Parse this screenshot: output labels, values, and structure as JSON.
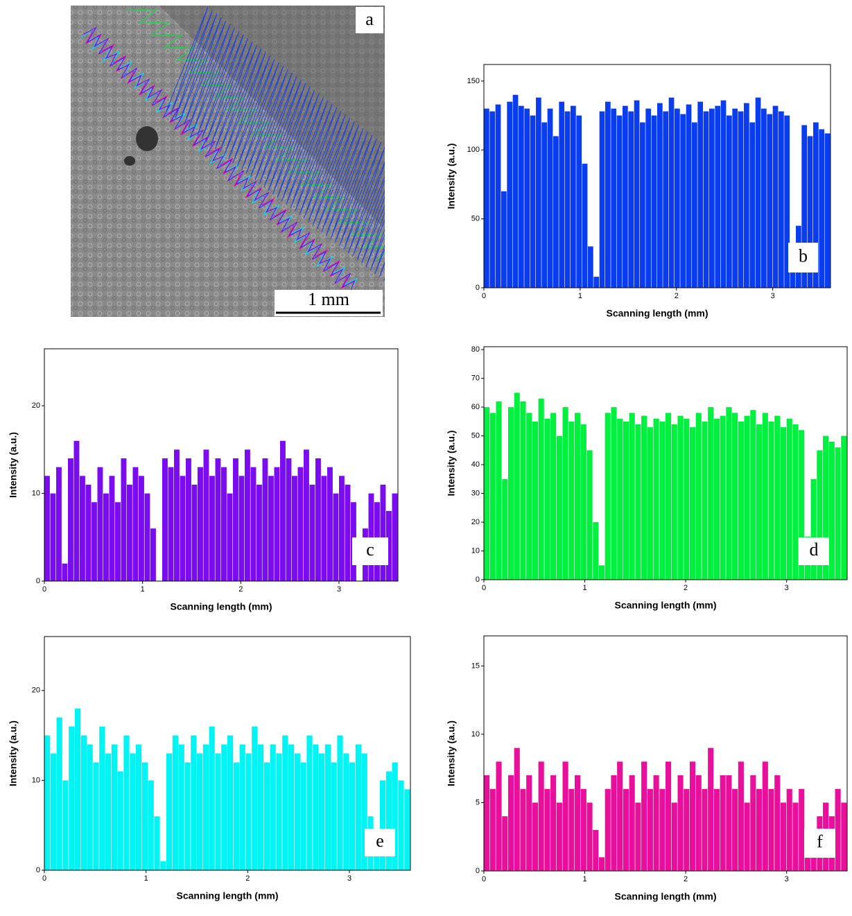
{
  "panel_a": {
    "label": "a",
    "scale_bar": "1 mm"
  },
  "chart_data": [
    {
      "type": "histogram",
      "label": "b",
      "x_label": "Scanning length (mm)",
      "y_label": "Intensity (a.u.)",
      "color": "#0a3cf0",
      "bins": [
        0,
        0.06,
        0.12,
        0.18,
        0.24,
        0.3,
        0.36,
        0.42,
        0.48,
        0.54,
        0.6,
        0.66,
        0.72,
        0.78,
        0.84,
        0.9,
        0.96,
        1.02,
        1.08,
        1.14,
        1.2,
        1.26,
        1.32,
        1.38,
        1.44,
        1.5,
        1.56,
        1.62,
        1.68,
        1.74,
        1.8,
        1.86,
        1.92,
        1.98,
        2.04,
        2.1,
        2.16,
        2.22,
        2.28,
        2.34,
        2.4,
        2.46,
        2.52,
        2.58,
        2.64,
        2.7,
        2.76,
        2.82,
        2.88,
        2.94,
        3,
        3.06,
        3.12,
        3.18,
        3.24,
        3.3,
        3.36,
        3.42,
        3.48,
        3.54,
        3.6
      ],
      "values": [
        130,
        128,
        133,
        70,
        135,
        140,
        132,
        130,
        125,
        138,
        120,
        130,
        110,
        135,
        128,
        132,
        125,
        90,
        30,
        8,
        128,
        135,
        130,
        125,
        132,
        128,
        136,
        120,
        130,
        125,
        134,
        128,
        138,
        130,
        126,
        133,
        120,
        135,
        128,
        130,
        132,
        136,
        125,
        130,
        128,
        134,
        120,
        138,
        130,
        126,
        132,
        128,
        125,
        20,
        45,
        118,
        110,
        120,
        115,
        112
      ],
      "xlim": [
        0,
        3.6
      ],
      "ylim": [
        0,
        162
      ],
      "xticks": [
        0,
        1,
        2,
        3
      ],
      "yticks": [
        0,
        50,
        100,
        150
      ]
    },
    {
      "type": "histogram",
      "label": "c",
      "x_label": "Scanning length (mm)",
      "y_label": "Intensity (a.u.)",
      "color": "#7a0cf0",
      "bins": [
        0,
        0.06,
        0.12,
        0.18,
        0.24,
        0.3,
        0.36,
        0.42,
        0.48,
        0.54,
        0.6,
        0.66,
        0.72,
        0.78,
        0.84,
        0.9,
        0.96,
        1.02,
        1.08,
        1.14,
        1.2,
        1.26,
        1.32,
        1.38,
        1.44,
        1.5,
        1.56,
        1.62,
        1.68,
        1.74,
        1.8,
        1.86,
        1.92,
        1.98,
        2.04,
        2.1,
        2.16,
        2.22,
        2.28,
        2.34,
        2.4,
        2.46,
        2.52,
        2.58,
        2.64,
        2.7,
        2.76,
        2.82,
        2.88,
        2.94,
        3,
        3.06,
        3.12,
        3.18,
        3.24,
        3.3,
        3.36,
        3.42,
        3.48,
        3.54,
        3.6
      ],
      "values": [
        12,
        10,
        13,
        2,
        14,
        16,
        12,
        11,
        9,
        13,
        10,
        12,
        9,
        14,
        11,
        13,
        12,
        10,
        6,
        0,
        14,
        13,
        15,
        12,
        14,
        11,
        13,
        15,
        12,
        14,
        13,
        10,
        14,
        12,
        15,
        13,
        11,
        14,
        12,
        13,
        16,
        14,
        12,
        13,
        15,
        11,
        14,
        12,
        13,
        10,
        12,
        11,
        9,
        0,
        6,
        10,
        9,
        11,
        8,
        10
      ],
      "xlim": [
        0,
        3.6
      ],
      "ylim": [
        0,
        26.5
      ],
      "xticks": [
        0,
        1,
        2,
        3
      ],
      "yticks": [
        0,
        10,
        20
      ]
    },
    {
      "type": "histogram",
      "label": "d",
      "x_label": "Scanning length (mm)",
      "y_label": "Intensity (a.u.)",
      "color": "#00f040",
      "bins": [
        0,
        0.06,
        0.12,
        0.18,
        0.24,
        0.3,
        0.36,
        0.42,
        0.48,
        0.54,
        0.6,
        0.66,
        0.72,
        0.78,
        0.84,
        0.9,
        0.96,
        1.02,
        1.08,
        1.14,
        1.2,
        1.26,
        1.32,
        1.38,
        1.44,
        1.5,
        1.56,
        1.62,
        1.68,
        1.74,
        1.8,
        1.86,
        1.92,
        1.98,
        2.04,
        2.1,
        2.16,
        2.22,
        2.28,
        2.34,
        2.4,
        2.46,
        2.52,
        2.58,
        2.64,
        2.7,
        2.76,
        2.82,
        2.88,
        2.94,
        3,
        3.06,
        3.12,
        3.18,
        3.24,
        3.3,
        3.36,
        3.42,
        3.48,
        3.54,
        3.6
      ],
      "values": [
        60,
        58,
        62,
        35,
        60,
        65,
        62,
        58,
        55,
        63,
        56,
        58,
        50,
        60,
        55,
        58,
        54,
        45,
        20,
        5,
        58,
        60,
        56,
        55,
        58,
        54,
        57,
        53,
        56,
        55,
        58,
        54,
        57,
        56,
        53,
        58,
        55,
        60,
        56,
        57,
        60,
        58,
        55,
        57,
        59,
        54,
        58,
        55,
        57,
        53,
        56,
        54,
        52,
        15,
        35,
        45,
        50,
        48,
        46,
        50
      ],
      "xlim": [
        0,
        3.6
      ],
      "ylim": [
        0,
        81
      ],
      "xticks": [
        0,
        1,
        2,
        3
      ],
      "yticks": [
        0,
        10,
        20,
        30,
        40,
        50,
        60,
        70,
        80
      ]
    },
    {
      "type": "histogram",
      "label": "e",
      "x_label": "Scanning length (mm)",
      "y_label": "Intensity (a.u.)",
      "color": "#00f4f4",
      "bins": [
        0,
        0.06,
        0.12,
        0.18,
        0.24,
        0.3,
        0.36,
        0.42,
        0.48,
        0.54,
        0.6,
        0.66,
        0.72,
        0.78,
        0.84,
        0.9,
        0.96,
        1.02,
        1.08,
        1.14,
        1.2,
        1.26,
        1.32,
        1.38,
        1.44,
        1.5,
        1.56,
        1.62,
        1.68,
        1.74,
        1.8,
        1.86,
        1.92,
        1.98,
        2.04,
        2.1,
        2.16,
        2.22,
        2.28,
        2.34,
        2.4,
        2.46,
        2.52,
        2.58,
        2.64,
        2.7,
        2.76,
        2.82,
        2.88,
        2.94,
        3,
        3.06,
        3.12,
        3.18,
        3.24,
        3.3,
        3.36,
        3.42,
        3.48,
        3.54,
        3.6
      ],
      "values": [
        15,
        13,
        17,
        10,
        16,
        18,
        15,
        14,
        12,
        16,
        13,
        14,
        11,
        15,
        13,
        14,
        12,
        10,
        6,
        1,
        13,
        15,
        14,
        12,
        15,
        13,
        14,
        16,
        13,
        14,
        15,
        12,
        14,
        13,
        16,
        14,
        12,
        14,
        13,
        15,
        14,
        13,
        12,
        15,
        14,
        13,
        14,
        12,
        15,
        13,
        12,
        14,
        13,
        6,
        3,
        10,
        11,
        12,
        10,
        9
      ],
      "xlim": [
        0,
        3.6
      ],
      "ylim": [
        0,
        26
      ],
      "xticks": [
        0,
        1,
        2,
        3
      ],
      "yticks": [
        0,
        10,
        20
      ]
    },
    {
      "type": "histogram",
      "label": "f",
      "x_label": "Scanning length (mm)",
      "y_label": "Intensity (a.u.)",
      "color": "#e8109a",
      "bins": [
        0,
        0.06,
        0.12,
        0.18,
        0.24,
        0.3,
        0.36,
        0.42,
        0.48,
        0.54,
        0.6,
        0.66,
        0.72,
        0.78,
        0.84,
        0.9,
        0.96,
        1.02,
        1.08,
        1.14,
        1.2,
        1.26,
        1.32,
        1.38,
        1.44,
        1.5,
        1.56,
        1.62,
        1.68,
        1.74,
        1.8,
        1.86,
        1.92,
        1.98,
        2.04,
        2.1,
        2.16,
        2.22,
        2.28,
        2.34,
        2.4,
        2.46,
        2.52,
        2.58,
        2.64,
        2.7,
        2.76,
        2.82,
        2.88,
        2.94,
        3,
        3.06,
        3.12,
        3.18,
        3.24,
        3.3,
        3.36,
        3.42,
        3.48,
        3.54,
        3.6
      ],
      "values": [
        7,
        6,
        8,
        4,
        7,
        9,
        6,
        7,
        5,
        8,
        6,
        7,
        5,
        8,
        6,
        7,
        6,
        5,
        3,
        1,
        6,
        7,
        8,
        6,
        7,
        5,
        8,
        6,
        7,
        6,
        8,
        5,
        7,
        6,
        8,
        7,
        6,
        9,
        6,
        7,
        7,
        6,
        8,
        5,
        7,
        6,
        8,
        6,
        7,
        5,
        6,
        5,
        6,
        1,
        2,
        4,
        5,
        4,
        6,
        5
      ],
      "xlim": [
        0,
        3.6
      ],
      "ylim": [
        0,
        17.2
      ],
      "xticks": [
        0,
        1,
        2,
        3
      ],
      "yticks": [
        0,
        5,
        10,
        15
      ]
    }
  ]
}
